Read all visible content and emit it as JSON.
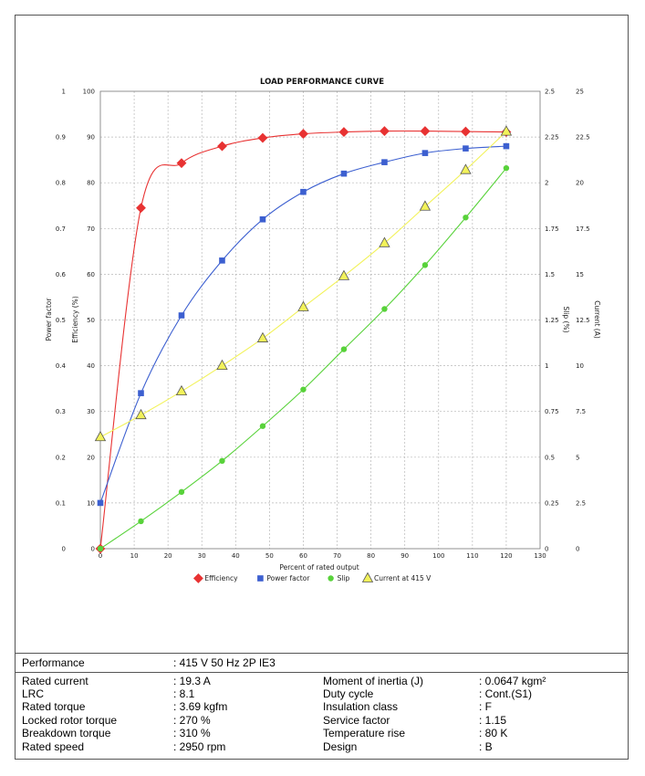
{
  "chart_data": {
    "type": "line",
    "title": "LOAD PERFORMANCE CURVE",
    "xlabel": "Percent of rated output",
    "xlim": [
      0,
      130
    ],
    "x_ticks": [
      0,
      10,
      20,
      30,
      40,
      50,
      60,
      70,
      80,
      90,
      100,
      110,
      120,
      130
    ],
    "grid": true,
    "legend_position": "bottom",
    "axes": {
      "power_factor": {
        "label": "Power factor",
        "side": "left-outer",
        "range": [
          0,
          1
        ],
        "ticks": [
          "0",
          "0.1",
          "0.2",
          "0.3",
          "0.4",
          "0.5",
          "0.6",
          "0.7",
          "0.8",
          "0.9",
          "1"
        ]
      },
      "efficiency": {
        "label": "Efficiency (%)",
        "side": "left-inner",
        "range": [
          0,
          100
        ],
        "ticks": [
          "0",
          "10",
          "20",
          "30",
          "40",
          "50",
          "60",
          "70",
          "80",
          "90",
          "100"
        ]
      },
      "slip": {
        "label": "Slip (%)",
        "side": "right-inner",
        "range": [
          0,
          2.5
        ],
        "ticks": [
          "0",
          "0.25",
          "0.5",
          "0.75",
          "1",
          "1.25",
          "1.5",
          "1.75",
          "2",
          "2.25",
          "2.5"
        ]
      },
      "current": {
        "label": "Current (A)",
        "side": "right-outer",
        "range": [
          0,
          25
        ],
        "ticks": [
          "0",
          "2.5",
          "5",
          "7.5",
          "10",
          "12.5",
          "15",
          "17.5",
          "20",
          "22.5",
          "25"
        ]
      }
    },
    "series": [
      {
        "name": "Efficiency",
        "axis": "efficiency",
        "color": "#e83232",
        "marker": "diamond",
        "x": [
          0,
          12,
          24,
          36,
          48,
          60,
          72,
          84,
          96,
          108,
          120
        ],
        "y": [
          0,
          74.5,
          84.3,
          88,
          89.8,
          90.7,
          91.1,
          91.3,
          91.3,
          91.2,
          91.1
        ]
      },
      {
        "name": "Power factor",
        "axis": "power_factor",
        "color": "#3c5fd0",
        "marker": "square",
        "x": [
          0,
          12,
          24,
          36,
          48,
          60,
          72,
          84,
          96,
          108,
          120
        ],
        "y": [
          0.1,
          0.34,
          0.51,
          0.63,
          0.72,
          0.78,
          0.82,
          0.845,
          0.865,
          0.875,
          0.88
        ]
      },
      {
        "name": "Slip",
        "axis": "slip",
        "color": "#58d23a",
        "marker": "circle",
        "x": [
          0,
          12,
          24,
          36,
          48,
          60,
          72,
          84,
          96,
          108,
          120
        ],
        "y": [
          0,
          0.15,
          0.31,
          0.48,
          0.67,
          0.87,
          1.09,
          1.31,
          1.55,
          1.81,
          2.08
        ]
      },
      {
        "name": "Current at 415 V",
        "axis": "current",
        "color": "#f2f25a",
        "marker": "triangle",
        "x": [
          0,
          12,
          24,
          36,
          48,
          60,
          72,
          84,
          96,
          108,
          120
        ],
        "y": [
          6.1,
          7.3,
          8.6,
          10,
          11.5,
          13.2,
          14.9,
          16.7,
          18.7,
          20.7,
          22.8
        ]
      }
    ]
  },
  "specs": {
    "header": {
      "label": "Performance",
      "value": ": 415 V 50 Hz 2P IE3"
    },
    "left": [
      {
        "label": "Rated current",
        "value": ": 19.3 A"
      },
      {
        "label": "LRC",
        "value": ": 8.1"
      },
      {
        "label": "Rated torque",
        "value": ": 3.69 kgfm"
      },
      {
        "label": "Locked rotor torque",
        "value": ": 270 %"
      },
      {
        "label": "Breakdown torque",
        "value": ": 310 %"
      },
      {
        "label": "Rated speed",
        "value": ": 2950 rpm"
      }
    ],
    "right": [
      {
        "label": "Moment of inertia (J)",
        "value": ": 0.0647 kgm²"
      },
      {
        "label": "Duty cycle",
        "value": ": Cont.(S1)"
      },
      {
        "label": "Insulation class",
        "value": ": F"
      },
      {
        "label": "Service factor",
        "value": ": 1.15"
      },
      {
        "label": "Temperature rise",
        "value": ": 80 K"
      },
      {
        "label": "Design",
        "value": ": B"
      }
    ]
  }
}
